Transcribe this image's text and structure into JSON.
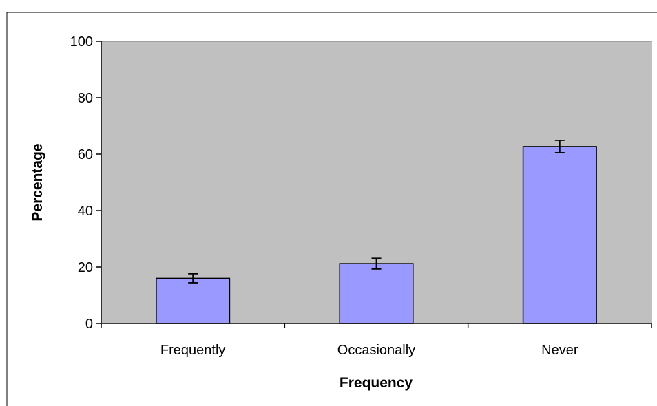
{
  "chart_data": {
    "type": "bar",
    "categories": [
      "Frequently",
      "Occasionally",
      "Never"
    ],
    "values": [
      16,
      21.2,
      62.7
    ],
    "error": [
      1.6,
      1.9,
      2.2
    ],
    "xlabel": "Frequency",
    "ylabel": "Percentage",
    "ylim": [
      0,
      100
    ],
    "yticks": [
      0,
      20,
      40,
      60,
      80,
      100
    ],
    "grid": false,
    "legend": "none",
    "colors": {
      "plot_background": "#C0C0C0",
      "bar_fill": "#9999FF",
      "bar_stroke": "#000000",
      "axis": "#000000",
      "frame": "#000000",
      "plot_border": "#808080"
    }
  }
}
